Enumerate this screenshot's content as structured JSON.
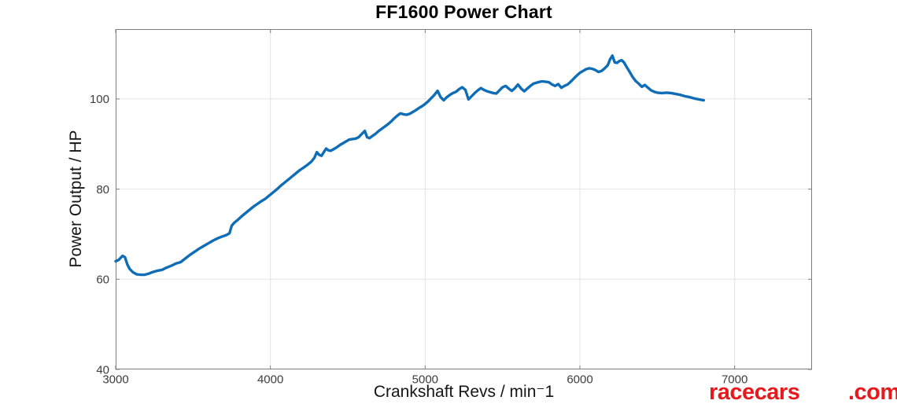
{
  "chart_data": {
    "type": "line",
    "title": "FF1600 Power Chart",
    "xlabel": "Crankshaft Revs / min⁻1",
    "ylabel": "Power Output / HP",
    "xlim": [
      3000,
      7500
    ],
    "ylim": [
      40,
      115.5
    ],
    "xticks": [
      3000,
      4000,
      5000,
      6000,
      7000
    ],
    "yticks": [
      40,
      60,
      80,
      100
    ],
    "grid": true,
    "legend_position": "none",
    "line_color": "#0e6db6",
    "line_width": 3.4,
    "series": [
      {
        "name": "Power Output",
        "points": [
          [
            3000,
            64.0
          ],
          [
            3020,
            64.3
          ],
          [
            3045,
            65.2
          ],
          [
            3060,
            64.9
          ],
          [
            3075,
            63.3
          ],
          [
            3090,
            62.3
          ],
          [
            3110,
            61.6
          ],
          [
            3135,
            61.1
          ],
          [
            3160,
            61.0
          ],
          [
            3185,
            61.0
          ],
          [
            3210,
            61.2
          ],
          [
            3240,
            61.6
          ],
          [
            3270,
            61.9
          ],
          [
            3300,
            62.1
          ],
          [
            3330,
            62.6
          ],
          [
            3360,
            63.0
          ],
          [
            3390,
            63.5
          ],
          [
            3420,
            63.8
          ],
          [
            3450,
            64.6
          ],
          [
            3480,
            65.4
          ],
          [
            3510,
            66.1
          ],
          [
            3540,
            66.8
          ],
          [
            3570,
            67.4
          ],
          [
            3600,
            68.0
          ],
          [
            3630,
            68.6
          ],
          [
            3660,
            69.1
          ],
          [
            3690,
            69.5
          ],
          [
            3715,
            69.8
          ],
          [
            3735,
            70.2
          ],
          [
            3750,
            71.9
          ],
          [
            3765,
            72.5
          ],
          [
            3790,
            73.2
          ],
          [
            3815,
            74.0
          ],
          [
            3840,
            74.7
          ],
          [
            3865,
            75.4
          ],
          [
            3890,
            76.1
          ],
          [
            3915,
            76.7
          ],
          [
            3940,
            77.3
          ],
          [
            3965,
            77.8
          ],
          [
            3990,
            78.5
          ],
          [
            4015,
            79.2
          ],
          [
            4040,
            79.9
          ],
          [
            4065,
            80.7
          ],
          [
            4090,
            81.4
          ],
          [
            4115,
            82.1
          ],
          [
            4140,
            82.8
          ],
          [
            4165,
            83.5
          ],
          [
            4190,
            84.2
          ],
          [
            4215,
            84.8
          ],
          [
            4240,
            85.4
          ],
          [
            4265,
            86.1
          ],
          [
            4285,
            87.0
          ],
          [
            4300,
            88.2
          ],
          [
            4315,
            87.6
          ],
          [
            4330,
            87.4
          ],
          [
            4345,
            88.2
          ],
          [
            4360,
            89.0
          ],
          [
            4375,
            88.6
          ],
          [
            4390,
            88.5
          ],
          [
            4410,
            88.9
          ],
          [
            4430,
            89.3
          ],
          [
            4450,
            89.8
          ],
          [
            4470,
            90.2
          ],
          [
            4490,
            90.6
          ],
          [
            4510,
            91.0
          ],
          [
            4530,
            91.1
          ],
          [
            4550,
            91.2
          ],
          [
            4570,
            91.5
          ],
          [
            4590,
            92.2
          ],
          [
            4610,
            92.9
          ],
          [
            4625,
            91.5
          ],
          [
            4640,
            91.3
          ],
          [
            4660,
            91.8
          ],
          [
            4680,
            92.3
          ],
          [
            4700,
            92.9
          ],
          [
            4720,
            93.4
          ],
          [
            4740,
            93.9
          ],
          [
            4760,
            94.4
          ],
          [
            4780,
            95.0
          ],
          [
            4800,
            95.7
          ],
          [
            4820,
            96.3
          ],
          [
            4840,
            96.8
          ],
          [
            4860,
            96.6
          ],
          [
            4880,
            96.5
          ],
          [
            4900,
            96.7
          ],
          [
            4920,
            97.1
          ],
          [
            4940,
            97.5
          ],
          [
            4960,
            98.0
          ],
          [
            4980,
            98.4
          ],
          [
            5000,
            98.9
          ],
          [
            5020,
            99.5
          ],
          [
            5040,
            100.2
          ],
          [
            5060,
            100.9
          ],
          [
            5080,
            101.8
          ],
          [
            5100,
            100.4
          ],
          [
            5120,
            99.7
          ],
          [
            5140,
            100.4
          ],
          [
            5160,
            100.9
          ],
          [
            5180,
            101.3
          ],
          [
            5200,
            101.6
          ],
          [
            5220,
            102.2
          ],
          [
            5240,
            102.6
          ],
          [
            5260,
            102.0
          ],
          [
            5280,
            99.9
          ],
          [
            5300,
            100.6
          ],
          [
            5320,
            101.3
          ],
          [
            5340,
            101.9
          ],
          [
            5360,
            102.4
          ],
          [
            5380,
            102.0
          ],
          [
            5400,
            101.7
          ],
          [
            5420,
            101.5
          ],
          [
            5440,
            101.3
          ],
          [
            5460,
            101.2
          ],
          [
            5480,
            101.9
          ],
          [
            5500,
            102.6
          ],
          [
            5520,
            102.9
          ],
          [
            5540,
            102.3
          ],
          [
            5560,
            101.8
          ],
          [
            5580,
            102.4
          ],
          [
            5600,
            103.2
          ],
          [
            5620,
            102.3
          ],
          [
            5640,
            101.7
          ],
          [
            5660,
            102.3
          ],
          [
            5680,
            102.9
          ],
          [
            5700,
            103.4
          ],
          [
            5720,
            103.6
          ],
          [
            5740,
            103.8
          ],
          [
            5760,
            103.9
          ],
          [
            5780,
            103.8
          ],
          [
            5800,
            103.7
          ],
          [
            5820,
            103.2
          ],
          [
            5840,
            102.9
          ],
          [
            5860,
            103.3
          ],
          [
            5880,
            102.5
          ],
          [
            5900,
            102.9
          ],
          [
            5920,
            103.2
          ],
          [
            5940,
            103.8
          ],
          [
            5960,
            104.5
          ],
          [
            5980,
            105.2
          ],
          [
            6000,
            105.8
          ],
          [
            6020,
            106.2
          ],
          [
            6040,
            106.6
          ],
          [
            6060,
            106.8
          ],
          [
            6080,
            106.7
          ],
          [
            6100,
            106.4
          ],
          [
            6120,
            106.0
          ],
          [
            6140,
            106.2
          ],
          [
            6160,
            106.8
          ],
          [
            6180,
            107.5
          ],
          [
            6195,
            108.8
          ],
          [
            6210,
            109.6
          ],
          [
            6225,
            108.1
          ],
          [
            6240,
            108.0
          ],
          [
            6255,
            108.4
          ],
          [
            6270,
            108.6
          ],
          [
            6285,
            108.1
          ],
          [
            6300,
            107.2
          ],
          [
            6320,
            106.1
          ],
          [
            6340,
            104.9
          ],
          [
            6360,
            104.0
          ],
          [
            6380,
            103.4
          ],
          [
            6400,
            102.7
          ],
          [
            6420,
            103.1
          ],
          [
            6440,
            102.5
          ],
          [
            6460,
            101.9
          ],
          [
            6480,
            101.6
          ],
          [
            6500,
            101.4
          ],
          [
            6530,
            101.3
          ],
          [
            6560,
            101.4
          ],
          [
            6590,
            101.3
          ],
          [
            6620,
            101.1
          ],
          [
            6650,
            100.9
          ],
          [
            6680,
            100.6
          ],
          [
            6710,
            100.4
          ],
          [
            6740,
            100.1
          ],
          [
            6770,
            99.9
          ],
          [
            6800,
            99.7
          ]
        ]
      }
    ]
  },
  "watermark": {
    "name": "racecars",
    "tld": ".com",
    "color": "#e6191d"
  },
  "colors": {
    "background": "#ffffff",
    "grid": "#e4e4e4",
    "axis_box": "#7e7e7e",
    "tick_label": "#3d3d3d",
    "title_text": "#000000"
  }
}
